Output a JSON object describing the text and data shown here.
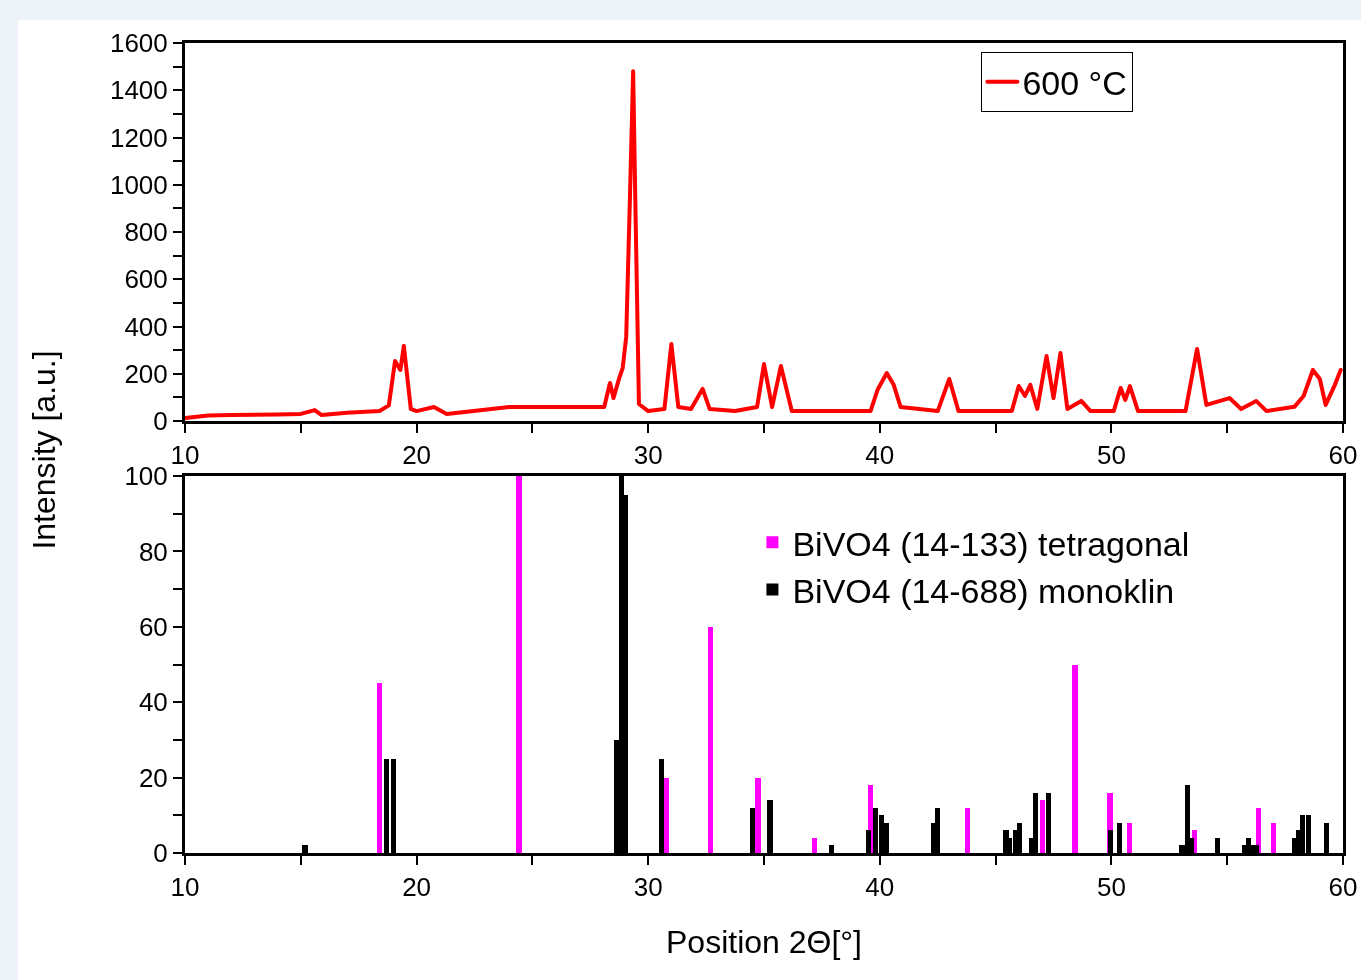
{
  "chart_data": [
    {
      "type": "line",
      "ylabel": "Intensity [a.u.]",
      "legend": "top right",
      "marker": "none",
      "line_style": "solid",
      "xlim": [
        10,
        60
      ],
      "xticks": [
        10,
        {
          "value": 15,
          "label": null
        },
        20,
        {
          "value": 25,
          "label": null
        },
        30,
        {
          "value": 35,
          "label": null
        },
        40,
        {
          "value": 45,
          "label": null
        },
        50,
        {
          "value": 55,
          "label": null
        },
        60
      ],
      "ylim": [
        0,
        1600
      ],
      "yticks": [
        0,
        {
          "value": 100,
          "label": null
        },
        200,
        {
          "value": 300,
          "label": null
        },
        400,
        {
          "value": 500,
          "label": null
        },
        600,
        {
          "value": 700,
          "label": null
        },
        800,
        {
          "value": 900,
          "label": null
        },
        1000,
        {
          "value": 1100,
          "label": null
        },
        1200,
        {
          "value": 1300,
          "label": null
        },
        1400,
        {
          "value": 1500,
          "label": null
        },
        1600
      ],
      "series": [
        {
          "name": "600 °C",
          "color": "#ff0000",
          "x": [
            10,
            11,
            12,
            14,
            15,
            15.6,
            15.9,
            17,
            18.4,
            18.8,
            19.07,
            19.3,
            19.45,
            19.75,
            20,
            20.75,
            21.3,
            24,
            26.6,
            28.1,
            28.35,
            28.5,
            28.75,
            28.9,
            29.05,
            29.2,
            29.35,
            29.45,
            29.6,
            30,
            30.7,
            31,
            31.3,
            31.85,
            32.35,
            32.65,
            33.75,
            34.7,
            35,
            35.35,
            35.73,
            36.2,
            38,
            39.6,
            39.9,
            40.3,
            40.6,
            40.9,
            42.5,
            43,
            43.4,
            45.7,
            46,
            46.27,
            46.5,
            46.8,
            47.2,
            47.5,
            47.8,
            48.1,
            48.7,
            49.1,
            50.1,
            50.4,
            50.6,
            50.8,
            51.15,
            53.2,
            53.7,
            54.1,
            55.1,
            55.6,
            56.25,
            56.7,
            57.9,
            58.3,
            58.7,
            59,
            59.25,
            59.65,
            59.9
          ],
          "values": [
            13,
            23,
            25,
            28,
            30,
            46,
            25,
            35,
            42,
            66,
            254,
            216,
            318,
            51,
            42,
            59,
            30,
            59,
            59,
            59,
            161,
            97,
            182,
            225,
            356,
            900,
            1480,
            900,
            72,
            42,
            51,
            326,
            59,
            51,
            136,
            51,
            42,
            59,
            241,
            59,
            233,
            42,
            42,
            42,
            131,
            203,
            153,
            59,
            42,
            178,
            42,
            42,
            148,
            106,
            153,
            51,
            275,
            97,
            288,
            51,
            85,
            42,
            42,
            140,
            89,
            148,
            42,
            42,
            305,
            68,
            97,
            51,
            85,
            42,
            60,
            106,
            216,
            178,
            68,
            153,
            216
          ]
        }
      ]
    },
    {
      "type": "bar",
      "xlabel": "Position 2Θ[°]",
      "legend": "top right",
      "xlim": [
        10,
        60
      ],
      "xticks": [
        10,
        {
          "value": 15,
          "label": null
        },
        20,
        {
          "value": 25,
          "label": null
        },
        30,
        {
          "value": 35,
          "label": null
        },
        40,
        {
          "value": 45,
          "label": null
        },
        50,
        {
          "value": 55,
          "label": null
        },
        60
      ],
      "ylim": [
        0,
        100
      ],
      "yticks": [
        0,
        {
          "value": 10,
          "label": null
        },
        20,
        {
          "value": 30,
          "label": null
        },
        40,
        {
          "value": 50,
          "label": null
        },
        60,
        {
          "value": 70,
          "label": null
        },
        80,
        {
          "value": 90,
          "label": null
        },
        100
      ],
      "series": [
        {
          "name": "BiVO4 (14-133) tetragonal",
          "color": "#ff00ff",
          "x": [
            18.38,
            24.42,
            30.77,
            32.7,
            34.74,
            37.17,
            39.58,
            43.8,
            47.04,
            48.43,
            49.94,
            50.8,
            53.6,
            56.37,
            57.0
          ],
          "values": [
            45,
            100,
            20,
            60,
            20,
            4,
            18,
            12,
            14,
            50,
            16,
            8,
            6,
            12,
            8
          ]
        },
        {
          "name": "BiVO4 (14-688) monoklin",
          "color": "#000000",
          "x": [
            15.18,
            18.7,
            19.0,
            28.64,
            28.85,
            29.0,
            30.58,
            34.5,
            35.26,
            37.9,
            39.5,
            39.8,
            40.06,
            40.3,
            42.34,
            42.5,
            45.45,
            45.6,
            45.88,
            46.05,
            46.56,
            46.74,
            47.3,
            49.98,
            50.34,
            53.05,
            53.3,
            53.47,
            54.6,
            55.77,
            55.9,
            56.1,
            56.28,
            57.9,
            58.07,
            58.27,
            58.5,
            59.3
          ],
          "values": [
            2,
            25,
            25,
            30,
            100,
            95,
            25,
            12,
            14,
            2,
            6,
            12,
            10,
            8,
            8,
            12,
            6,
            4,
            6,
            8,
            4,
            16,
            16,
            6,
            8,
            2,
            18,
            4,
            4,
            2,
            4,
            2,
            2,
            4,
            6,
            10,
            10,
            8
          ]
        }
      ]
    }
  ]
}
